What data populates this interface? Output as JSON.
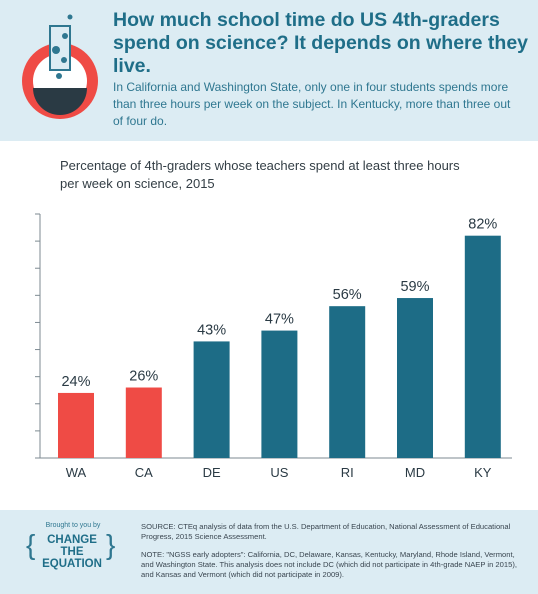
{
  "header": {
    "title": "How much school time do US 4th-graders spend on science? It depends on where they live.",
    "subtitle": "In California and Washington State, only one in four students spends more than three hours per week on the subject. In Kentucky, more than three out of four do."
  },
  "colors": {
    "highlight": "#ef4b45",
    "default": "#1d6c86",
    "title": "#1f6e88",
    "header_bg": "#dcecf3"
  },
  "icons": {
    "logo": "flask-icon"
  },
  "chart_data": {
    "type": "bar",
    "title": "Percentage of 4th-graders whose teachers spend at least three hours per week on science, 2015",
    "categories": [
      "WA",
      "CA",
      "DE",
      "US",
      "RI",
      "MD",
      "KY"
    ],
    "values": [
      24,
      26,
      43,
      47,
      56,
      59,
      82
    ],
    "labels": [
      "24%",
      "26%",
      "43%",
      "47%",
      "56%",
      "59%",
      "82%"
    ],
    "highlighted": [
      "WA",
      "CA"
    ],
    "ylim": [
      0,
      90
    ],
    "yticks": [
      0,
      10,
      20,
      30,
      40,
      50,
      60,
      70,
      80,
      90
    ],
    "xlabel": "",
    "ylabel": ""
  },
  "footer": {
    "brought_by": "Brought to you by",
    "brand_line1": "CHANGE THE",
    "brand_line2": "EQUATION",
    "source": "SOURCE: CTEq analysis of data from the U.S. Department of Education, National Assessment of Educational Progress, 2015 Science Assessment.",
    "note": "NOTE: \"NGSS early adopters\": California, DC, Delaware, Kansas, Kentucky, Maryland, Rhode Island, Vermont, and Washington State. This analysis does not include DC (which did not participate in 4th-grade NAEP in 2015), and Kansas and Vermont (which did not participate in 2009)."
  }
}
